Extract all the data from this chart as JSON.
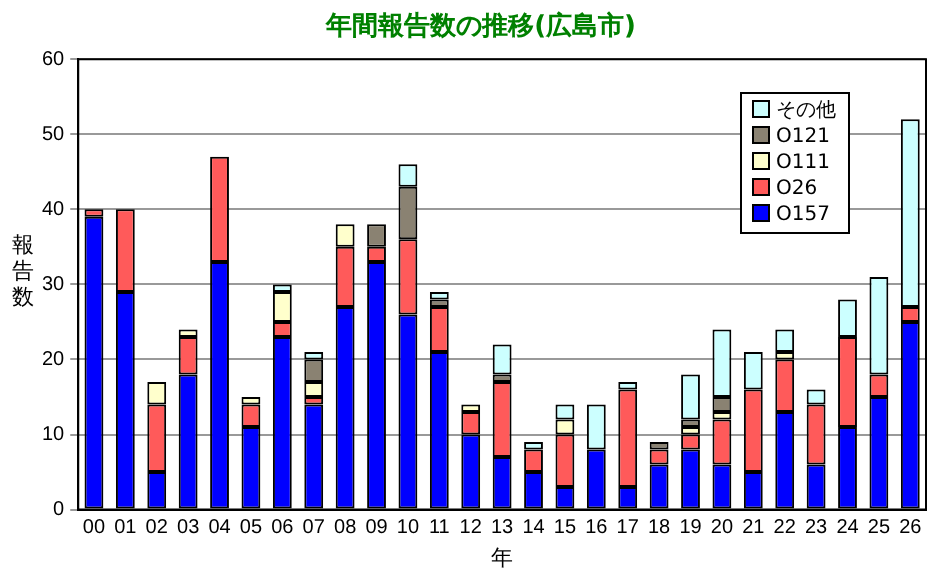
{
  "chart_data": {
    "type": "bar",
    "title": "年間報告数の推移(広島市)",
    "xlabel": "年",
    "ylabel": "報告数",
    "categories": [
      "00",
      "01",
      "02",
      "03",
      "04",
      "05",
      "06",
      "07",
      "08",
      "09",
      "10",
      "11",
      "12",
      "13",
      "14",
      "15",
      "16",
      "17",
      "18",
      "19",
      "20",
      "21",
      "22",
      "23",
      "24",
      "25",
      "26"
    ],
    "stacked": true,
    "ylim": [
      0,
      60
    ],
    "yticks": [
      0,
      10,
      20,
      30,
      40,
      50,
      60
    ],
    "grid": "y",
    "legend": "top right",
    "series": [
      {
        "name": "O157",
        "color": "#0000ff",
        "values": [
          39,
          29,
          5,
          18,
          33,
          11,
          23,
          14,
          27,
          33,
          26,
          21,
          10,
          7,
          5,
          3,
          8,
          3,
          6,
          8,
          6,
          5,
          13,
          6,
          11,
          15,
          25
        ]
      },
      {
        "name": "O26",
        "color": "#ff5a5a",
        "values": [
          1,
          11,
          9,
          5,
          14,
          3,
          2,
          1,
          8,
          2,
          10,
          6,
          3,
          10,
          3,
          7,
          0,
          13,
          2,
          2,
          6,
          11,
          7,
          8,
          12,
          3,
          2
        ]
      },
      {
        "name": "O111",
        "color": "#ffffcc",
        "values": [
          0,
          0,
          3,
          1,
          0,
          1,
          4,
          2,
          3,
          0,
          0,
          0,
          1,
          0,
          0,
          2,
          0,
          0,
          0,
          1,
          1,
          0,
          1,
          0,
          0,
          0,
          0
        ]
      },
      {
        "name": "O121",
        "color": "#8a8272",
        "values": [
          0,
          0,
          0,
          0,
          0,
          0,
          0,
          3,
          0,
          3,
          7,
          1,
          0,
          1,
          0,
          0,
          0,
          0,
          1,
          1,
          2,
          0,
          0,
          0,
          0,
          0,
          0
        ]
      },
      {
        "name": "その他",
        "color": "#ccffff",
        "values": [
          0,
          0,
          0,
          0,
          0,
          0,
          1,
          1,
          0,
          0,
          3,
          1,
          0,
          4,
          1,
          2,
          6,
          1,
          0,
          6,
          9,
          5,
          3,
          2,
          5,
          13,
          25
        ]
      }
    ]
  }
}
